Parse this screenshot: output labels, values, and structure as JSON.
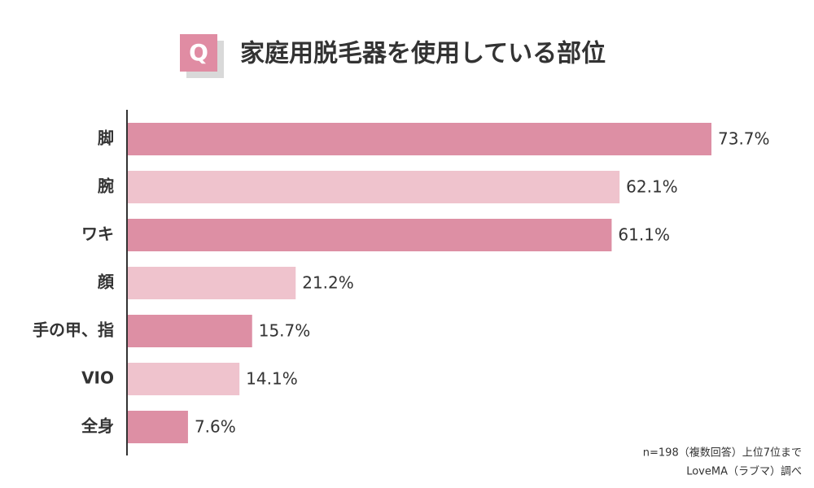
{
  "badge": "Q",
  "chart_data": {
    "type": "hbar",
    "title": "家庭用脱毛器を使用している部位",
    "categories": [
      "脚",
      "腕",
      "ワキ",
      "顔",
      "手の甲、指",
      "VIO",
      "全身"
    ],
    "values": [
      73.7,
      62.1,
      61.1,
      21.2,
      15.7,
      14.1,
      7.6
    ],
    "value_labels": [
      "73.7%",
      "62.1%",
      "61.1%",
      "21.2%",
      "15.7%",
      "14.1%",
      "7.6%"
    ],
    "colors": [
      "#dd8fa4",
      "#efc3cd",
      "#dd8fa4",
      "#efc3cd",
      "#dd8fa4",
      "#efc3cd",
      "#dd8fa4"
    ],
    "notes": [
      "n=198（複数回答）上位7位まで",
      "LoveMA（ラブマ）調べ"
    ]
  }
}
